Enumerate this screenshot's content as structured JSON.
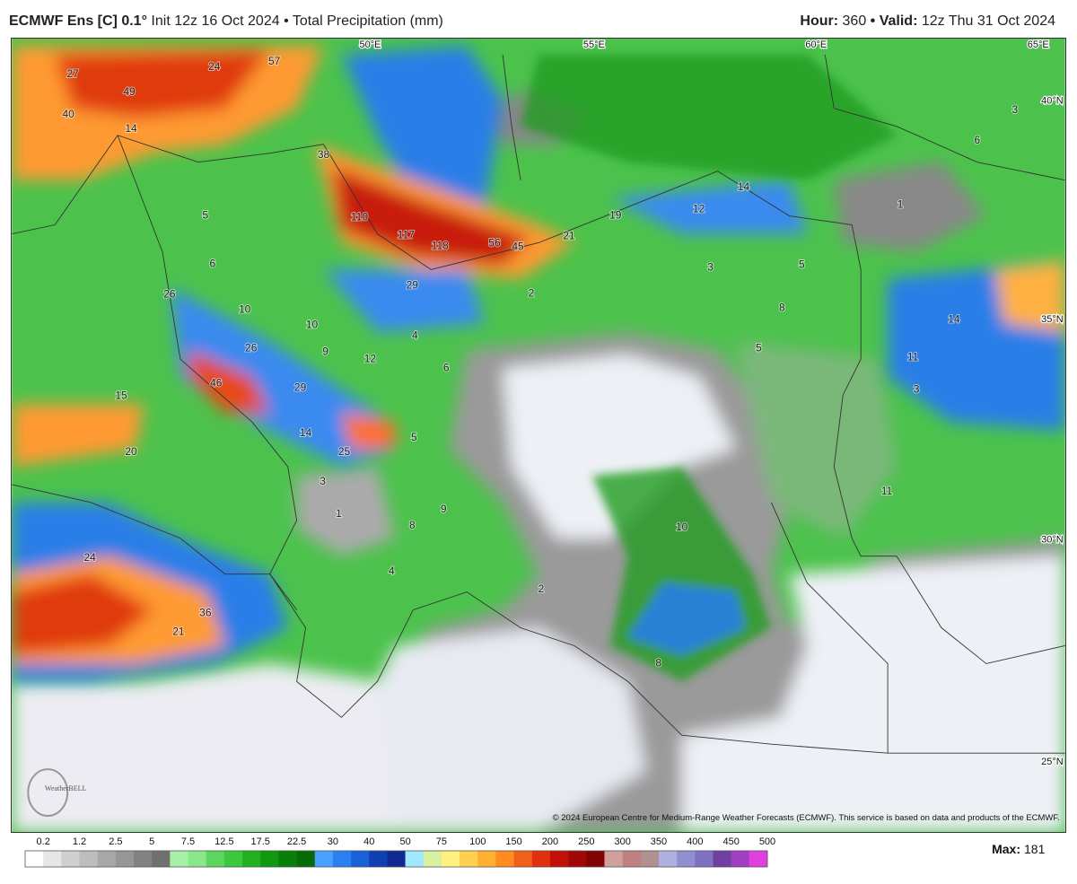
{
  "header": {
    "title": "ECMWF Ens [C] 0.1°",
    "subtitle": "Init 12z 16 Oct 2024 • Total Precipitation (mm)",
    "hour_label": "Hour:",
    "hour": "360",
    "valid_label": "• Valid:",
    "valid": "12z Thu 31 Oct 2024"
  },
  "map": {
    "longitudes": [
      "50°E",
      "55°E",
      "60°E",
      "65°E"
    ],
    "latitudes": [
      "40°N",
      "35°N",
      "30°N",
      "25°N"
    ],
    "labels": [
      27,
      49,
      40,
      57,
      24,
      14,
      38,
      110,
      117,
      118,
      56,
      45,
      21,
      19,
      12,
      14,
      1,
      6,
      3,
      5,
      6,
      26,
      10,
      29,
      2,
      3,
      5,
      8,
      10,
      4,
      9,
      12,
      6,
      26,
      46,
      29,
      15,
      14,
      25,
      20,
      3,
      5,
      14,
      11,
      3,
      11,
      10,
      8,
      9,
      1,
      4,
      2,
      24,
      36,
      21,
      8,
      5
    ],
    "copyright": "© 2024 European Centre for Medium-Range Weather Forecasts (ECMWF). This service is based on data and products of the ECMWF.",
    "logo": "WeatherBELL"
  },
  "colorbar": {
    "labels": [
      "0.2",
      "1.2",
      "2.5",
      "5",
      "7.5",
      "12.5",
      "17.5",
      "22.5",
      "30",
      "40",
      "50",
      "75",
      "100",
      "150",
      "200",
      "250",
      "300",
      "350",
      "400",
      "450",
      "500"
    ],
    "colors": [
      "#ffffff",
      "#e6e6e6",
      "#cfcfcf",
      "#bdbdbd",
      "#a8a8a8",
      "#969696",
      "#828282",
      "#707070",
      "#a8f0a8",
      "#88e888",
      "#5cd65c",
      "#3cc83c",
      "#20b020",
      "#109810",
      "#088008",
      "#066a06",
      "#4aa0ff",
      "#2a80f0",
      "#1a60d8",
      "#1040b0",
      "#102890",
      "#a0e8ff",
      "#d8f0a0",
      "#fff080",
      "#ffd050",
      "#ffb030",
      "#ff8c20",
      "#f06018",
      "#e03010",
      "#c01008",
      "#a00808",
      "#800404",
      "#d0a0a0",
      "#c08080",
      "#b09090",
      "#b0b0e0",
      "#9090d0",
      "#8070c0",
      "#7040a0",
      "#a040c0",
      "#e040e0"
    ],
    "max_label": "Max:",
    "max": "181"
  }
}
